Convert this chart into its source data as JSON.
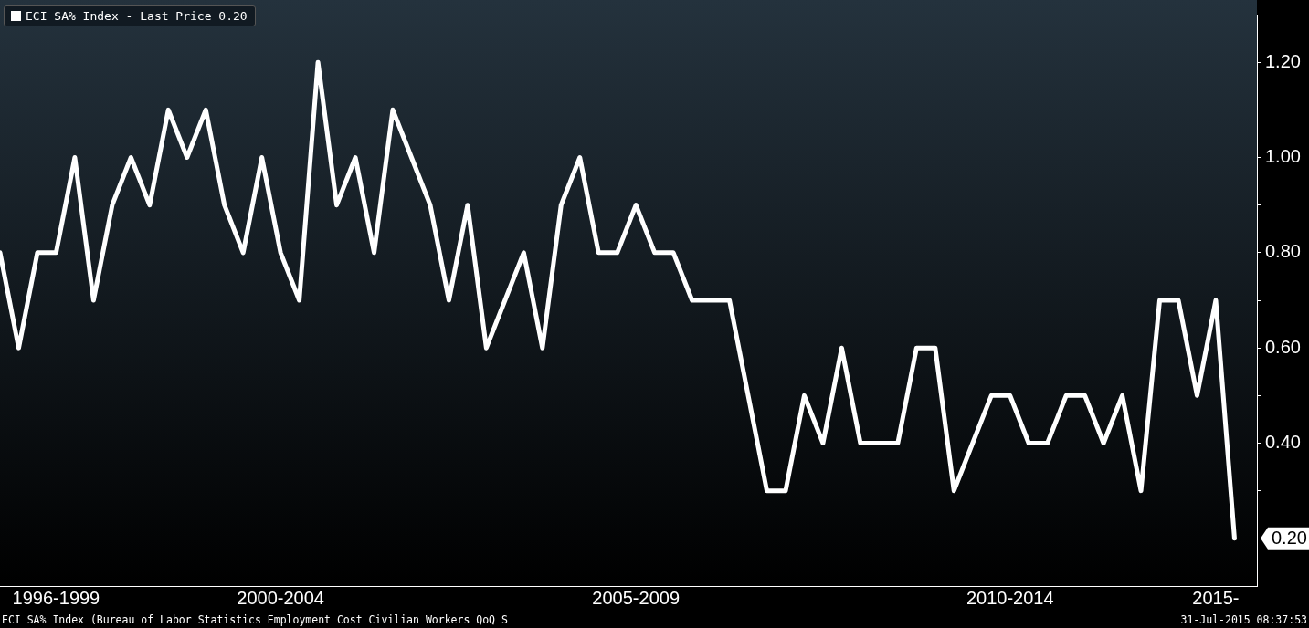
{
  "chart_data": {
    "type": "line",
    "categories": [
      null,
      null,
      null,
      "1996-1999",
      null,
      null,
      null,
      null,
      null,
      null,
      null,
      null,
      null,
      null,
      null,
      "2000-2004",
      null,
      null,
      null,
      null,
      null,
      null,
      null,
      null,
      null,
      null,
      null,
      null,
      null,
      null,
      null,
      null,
      null,
      null,
      "2005-2009",
      null,
      null,
      null,
      null,
      null,
      null,
      null,
      null,
      null,
      null,
      null,
      null,
      null,
      null,
      null,
      null,
      null,
      null,
      null,
      "2010-2014",
      null,
      null,
      null,
      null,
      null,
      null,
      null,
      null,
      null,
      null,
      "2015-",
      null
    ],
    "series": [
      {
        "name": "ECI SA% Index - Last Price 0.20",
        "color": "#ffffff",
        "values": [
          0.8,
          0.6,
          0.8,
          0.8,
          1.0,
          0.7,
          0.9,
          1.0,
          0.9,
          1.1,
          1.0,
          1.1,
          0.9,
          0.8,
          1.0,
          0.8,
          0.7,
          1.2,
          0.9,
          1.0,
          0.8,
          1.1,
          1.0,
          0.9,
          0.7,
          0.9,
          0.6,
          0.7,
          0.8,
          0.6,
          0.9,
          1.0,
          0.8,
          0.8,
          0.9,
          0.8,
          0.8,
          0.7,
          0.7,
          0.7,
          0.5,
          0.3,
          0.3,
          0.5,
          0.4,
          0.6,
          0.4,
          0.4,
          0.4,
          0.6,
          0.6,
          0.3,
          0.4,
          0.5,
          0.5,
          0.4,
          0.4,
          0.5,
          0.5,
          0.4,
          0.5,
          0.3,
          0.7,
          0.7,
          0.5,
          0.7,
          0.2
        ]
      }
    ],
    "ylim": [
      0.1,
      1.3
    ],
    "yticks": [
      {
        "value": 0.3,
        "label": null
      },
      {
        "value": 0.4,
        "label": "0.40"
      },
      {
        "value": 0.5,
        "label": null
      },
      {
        "value": 0.6,
        "label": "0.60"
      },
      {
        "value": 0.7,
        "label": null
      },
      {
        "value": 0.8,
        "label": "0.80"
      },
      {
        "value": 0.9,
        "label": null
      },
      {
        "value": 1.0,
        "label": "1.00"
      },
      {
        "value": 1.1,
        "label": null
      },
      {
        "value": 1.2,
        "label": "1.20"
      }
    ],
    "grid": false,
    "legend": "top left",
    "marker": "none",
    "line_style": "solid",
    "annotations": [
      "ECI SA% Index (Bureau of Labor Statistics Employment Cost Civilian Workers QoQ S",
      "31-Jul-2015 08:37:53",
      "0.20"
    ]
  }
}
